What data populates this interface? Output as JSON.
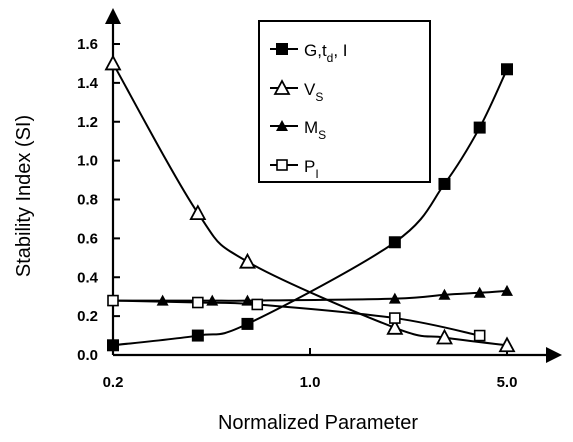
{
  "chart_data": {
    "type": "line",
    "xlabel": "Normalized Parameter",
    "ylabel": "Stability Index (SI)",
    "xscale": "log",
    "xlim": [
      0.2,
      5.0
    ],
    "ylim": [
      0.0,
      1.6
    ],
    "xticks": [
      0.2,
      1.0,
      5.0
    ],
    "xtick_labels": [
      "0.2",
      "1.0",
      "5.0"
    ],
    "yticks": [
      0.0,
      0.2,
      0.4,
      0.6,
      0.8,
      1.0,
      1.2,
      1.4,
      1.6
    ],
    "ytick_labels": [
      "0.0",
      "0.2",
      "0.4",
      "0.6",
      "0.8",
      "1.0",
      "1.2",
      "1.4",
      "1.6"
    ],
    "legend_position": "top-center",
    "series": [
      {
        "name": "G,t_d, I",
        "legend_main": "G,t",
        "legend_sub": "d",
        "legend_tail": ", I",
        "marker": "filled-square",
        "x": [
          0.2,
          0.4,
          0.6,
          2.0,
          3.0,
          4.0,
          5.0
        ],
        "y": [
          0.05,
          0.1,
          0.16,
          0.58,
          0.88,
          1.17,
          1.47
        ]
      },
      {
        "name": "V_S",
        "legend_main": "V",
        "legend_sub": "S",
        "legend_tail": "",
        "marker": "open-triangle",
        "x": [
          0.2,
          0.4,
          0.6,
          2.0,
          3.0,
          5.0
        ],
        "y": [
          1.5,
          0.73,
          0.48,
          0.14,
          0.09,
          0.05
        ]
      },
      {
        "name": "M_S",
        "legend_main": "M",
        "legend_sub": "S",
        "legend_tail": "",
        "marker": "filled-triangle",
        "x": [
          0.2,
          0.3,
          0.45,
          0.6,
          2.0,
          3.0,
          4.0,
          5.0
        ],
        "y": [
          0.28,
          0.28,
          0.28,
          0.28,
          0.29,
          0.31,
          0.32,
          0.33
        ]
      },
      {
        "name": "P_I",
        "legend_main": "P",
        "legend_sub": "I",
        "legend_tail": "",
        "marker": "open-square",
        "x": [
          0.2,
          0.4,
          0.65,
          2.0,
          4.0
        ],
        "y": [
          0.28,
          0.27,
          0.26,
          0.19,
          0.1
        ]
      }
    ]
  }
}
